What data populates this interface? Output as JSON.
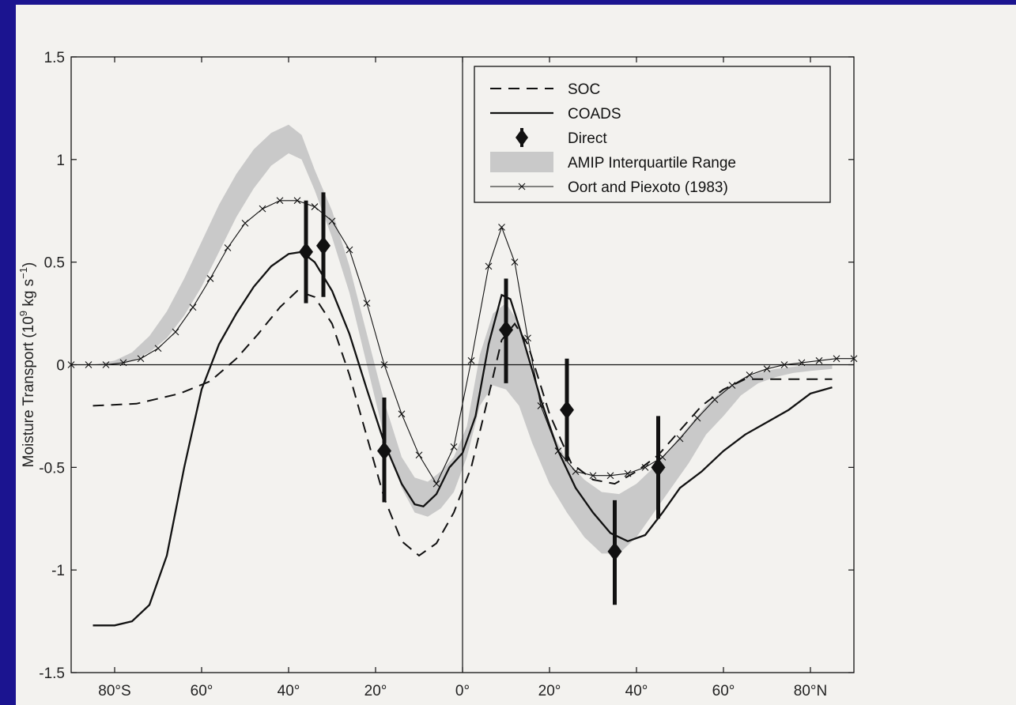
{
  "colors": {
    "background": "#1b1490",
    "paper": "#f3f2ef",
    "ink": "#111111",
    "band": "#c9c9c9"
  },
  "chart_data": {
    "type": "line",
    "ylabel": "Moisture Transport (10",
    "ylabel_exp": "9",
    "ylabel_unit": " kg s",
    "ylabel_unit_exp": "−1",
    "ylabel_close": ")",
    "xlim": [
      -90,
      90
    ],
    "ylim": [
      -1.5,
      1.5
    ],
    "x_ticks": [
      {
        "value": -80,
        "label": "80°S"
      },
      {
        "value": -60,
        "label": "60°"
      },
      {
        "value": -40,
        "label": "40°"
      },
      {
        "value": -20,
        "label": "20°"
      },
      {
        "value": 0,
        "label": "0°"
      },
      {
        "value": 20,
        "label": "20°"
      },
      {
        "value": 40,
        "label": "40°"
      },
      {
        "value": 60,
        "label": "60°"
      },
      {
        "value": 80,
        "label": "80°N"
      }
    ],
    "y_ticks": [
      {
        "value": 1.5,
        "label": "1.5"
      },
      {
        "value": 1,
        "label": "1"
      },
      {
        "value": 0.5,
        "label": "0.5"
      },
      {
        "value": 0,
        "label": "0"
      },
      {
        "value": -0.5,
        "label": "-0.5"
      },
      {
        "value": -1,
        "label": "-1"
      },
      {
        "value": -1.5,
        "label": "-1.5"
      }
    ],
    "grid": false,
    "zero_lines": true,
    "legend_position": "top-right",
    "series": [
      {
        "name": "SOC",
        "style": "dashed",
        "x": [
          -85,
          -75,
          -65,
          -58,
          -52,
          -47,
          -42,
          -38,
          -34,
          -30,
          -26,
          -22,
          -18,
          -14,
          -10,
          -6,
          -2,
          2,
          6,
          9,
          12,
          15,
          20,
          25,
          30,
          35,
          40,
          45,
          50,
          55,
          60,
          65,
          70,
          75,
          80,
          85
        ],
        "y": [
          -0.2,
          -0.19,
          -0.14,
          -0.08,
          0.03,
          0.15,
          0.28,
          0.36,
          0.33,
          0.2,
          -0.05,
          -0.35,
          -0.65,
          -0.86,
          -0.93,
          -0.87,
          -0.72,
          -0.5,
          -0.15,
          0.12,
          0.2,
          0.1,
          -0.24,
          -0.48,
          -0.56,
          -0.58,
          -0.52,
          -0.44,
          -0.32,
          -0.2,
          -0.12,
          -0.07,
          -0.07,
          -0.07,
          -0.07,
          -0.07
        ]
      },
      {
        "name": "COADS",
        "style": "solid",
        "x": [
          -85,
          -80,
          -76,
          -72,
          -68,
          -64,
          -60,
          -56,
          -52,
          -48,
          -44,
          -40,
          -37,
          -34,
          -30,
          -26,
          -22,
          -18,
          -14,
          -11,
          -9,
          -6,
          -3,
          0,
          3,
          6,
          9,
          11,
          14,
          18,
          22,
          26,
          30,
          34,
          38,
          42,
          46,
          50,
          55,
          60,
          65,
          70,
          75,
          80,
          85
        ],
        "y": [
          -1.27,
          -1.27,
          -1.25,
          -1.17,
          -0.93,
          -0.5,
          -0.12,
          0.1,
          0.25,
          0.38,
          0.48,
          0.54,
          0.55,
          0.5,
          0.36,
          0.15,
          -0.12,
          -0.38,
          -0.58,
          -0.68,
          -0.69,
          -0.63,
          -0.5,
          -0.43,
          -0.25,
          0.1,
          0.34,
          0.32,
          0.12,
          -0.17,
          -0.42,
          -0.6,
          -0.72,
          -0.82,
          -0.86,
          -0.83,
          -0.72,
          -0.6,
          -0.52,
          -0.42,
          -0.34,
          -0.28,
          -0.22,
          -0.14,
          -0.11
        ]
      },
      {
        "name": "Oort and Piexoto (1983)",
        "style": "thin-x",
        "x": [
          -90,
          -86,
          -82,
          -78,
          -74,
          -70,
          -66,
          -62,
          -58,
          -54,
          -50,
          -46,
          -42,
          -38,
          -34,
          -30,
          -26,
          -22,
          -18,
          -14,
          -10,
          -6,
          -2,
          2,
          6,
          9,
          12,
          15,
          18,
          22,
          26,
          30,
          34,
          38,
          42,
          46,
          50,
          54,
          58,
          62,
          66,
          70,
          74,
          78,
          82,
          86,
          90
        ],
        "y": [
          0.0,
          0.0,
          0.0,
          0.01,
          0.03,
          0.08,
          0.16,
          0.28,
          0.42,
          0.57,
          0.69,
          0.76,
          0.8,
          0.8,
          0.77,
          0.7,
          0.56,
          0.3,
          0.0,
          -0.24,
          -0.44,
          -0.58,
          -0.4,
          0.02,
          0.48,
          0.67,
          0.5,
          0.13,
          -0.2,
          -0.42,
          -0.52,
          -0.54,
          -0.54,
          -0.53,
          -0.5,
          -0.45,
          -0.36,
          -0.26,
          -0.17,
          -0.1,
          -0.05,
          -0.02,
          0.0,
          0.01,
          0.02,
          0.03,
          0.03
        ]
      },
      {
        "name": "AMIP Interquartile Range",
        "style": "band",
        "x": [
          -85,
          -80,
          -76,
          -72,
          -68,
          -64,
          -60,
          -56,
          -52,
          -48,
          -44,
          -40,
          -37,
          -34,
          -30,
          -26,
          -22,
          -18,
          -14,
          -11,
          -8,
          -5,
          -2,
          1,
          4,
          7,
          10,
          13,
          16,
          20,
          24,
          28,
          32,
          36,
          40,
          44,
          48,
          52,
          56,
          60,
          64,
          68,
          72,
          76,
          80,
          85
        ],
        "y_low": [
          0.0,
          0.0,
          0.02,
          0.06,
          0.13,
          0.24,
          0.38,
          0.55,
          0.72,
          0.86,
          0.97,
          1.03,
          1.0,
          0.85,
          0.62,
          0.35,
          0.0,
          -0.35,
          -0.6,
          -0.72,
          -0.74,
          -0.7,
          -0.62,
          -0.45,
          -0.2,
          -0.1,
          -0.12,
          -0.2,
          -0.38,
          -0.58,
          -0.72,
          -0.84,
          -0.92,
          -0.92,
          -0.84,
          -0.72,
          -0.6,
          -0.48,
          -0.34,
          -0.25,
          -0.15,
          -0.09,
          -0.06,
          -0.04,
          -0.03,
          -0.02
        ],
        "y_high": [
          0.0,
          0.02,
          0.06,
          0.14,
          0.26,
          0.42,
          0.6,
          0.78,
          0.93,
          1.05,
          1.13,
          1.17,
          1.12,
          0.95,
          0.75,
          0.48,
          0.15,
          -0.18,
          -0.45,
          -0.55,
          -0.57,
          -0.52,
          -0.45,
          -0.3,
          0.05,
          0.25,
          0.3,
          0.2,
          -0.05,
          -0.3,
          -0.47,
          -0.56,
          -0.62,
          -0.63,
          -0.58,
          -0.5,
          -0.4,
          -0.3,
          -0.2,
          -0.12,
          -0.07,
          -0.04,
          -0.02,
          -0.01,
          0.0,
          0.0
        ]
      },
      {
        "name": "Direct",
        "style": "points-errorbars",
        "points": [
          {
            "x": -36,
            "y": 0.55,
            "lo": 0.3,
            "hi": 0.8
          },
          {
            "x": -32,
            "y": 0.58,
            "lo": 0.33,
            "hi": 0.84
          },
          {
            "x": -18,
            "y": -0.42,
            "lo": -0.67,
            "hi": -0.16
          },
          {
            "x": 10,
            "y": 0.17,
            "lo": -0.09,
            "hi": 0.42
          },
          {
            "x": 24,
            "y": -0.22,
            "lo": -0.47,
            "hi": 0.03
          },
          {
            "x": 35,
            "y": -0.91,
            "lo": -1.17,
            "hi": -0.66
          },
          {
            "x": 45,
            "y": -0.5,
            "lo": -0.75,
            "hi": -0.25
          }
        ]
      }
    ],
    "legend": [
      {
        "label": "SOC",
        "kind": "dashed"
      },
      {
        "label": "COADS",
        "kind": "solid"
      },
      {
        "label": "Direct",
        "kind": "diamond"
      },
      {
        "label": "AMIP Interquartile Range",
        "kind": "band"
      },
      {
        "label": "Oort and Piexoto (1983)",
        "kind": "thin-x"
      }
    ]
  }
}
